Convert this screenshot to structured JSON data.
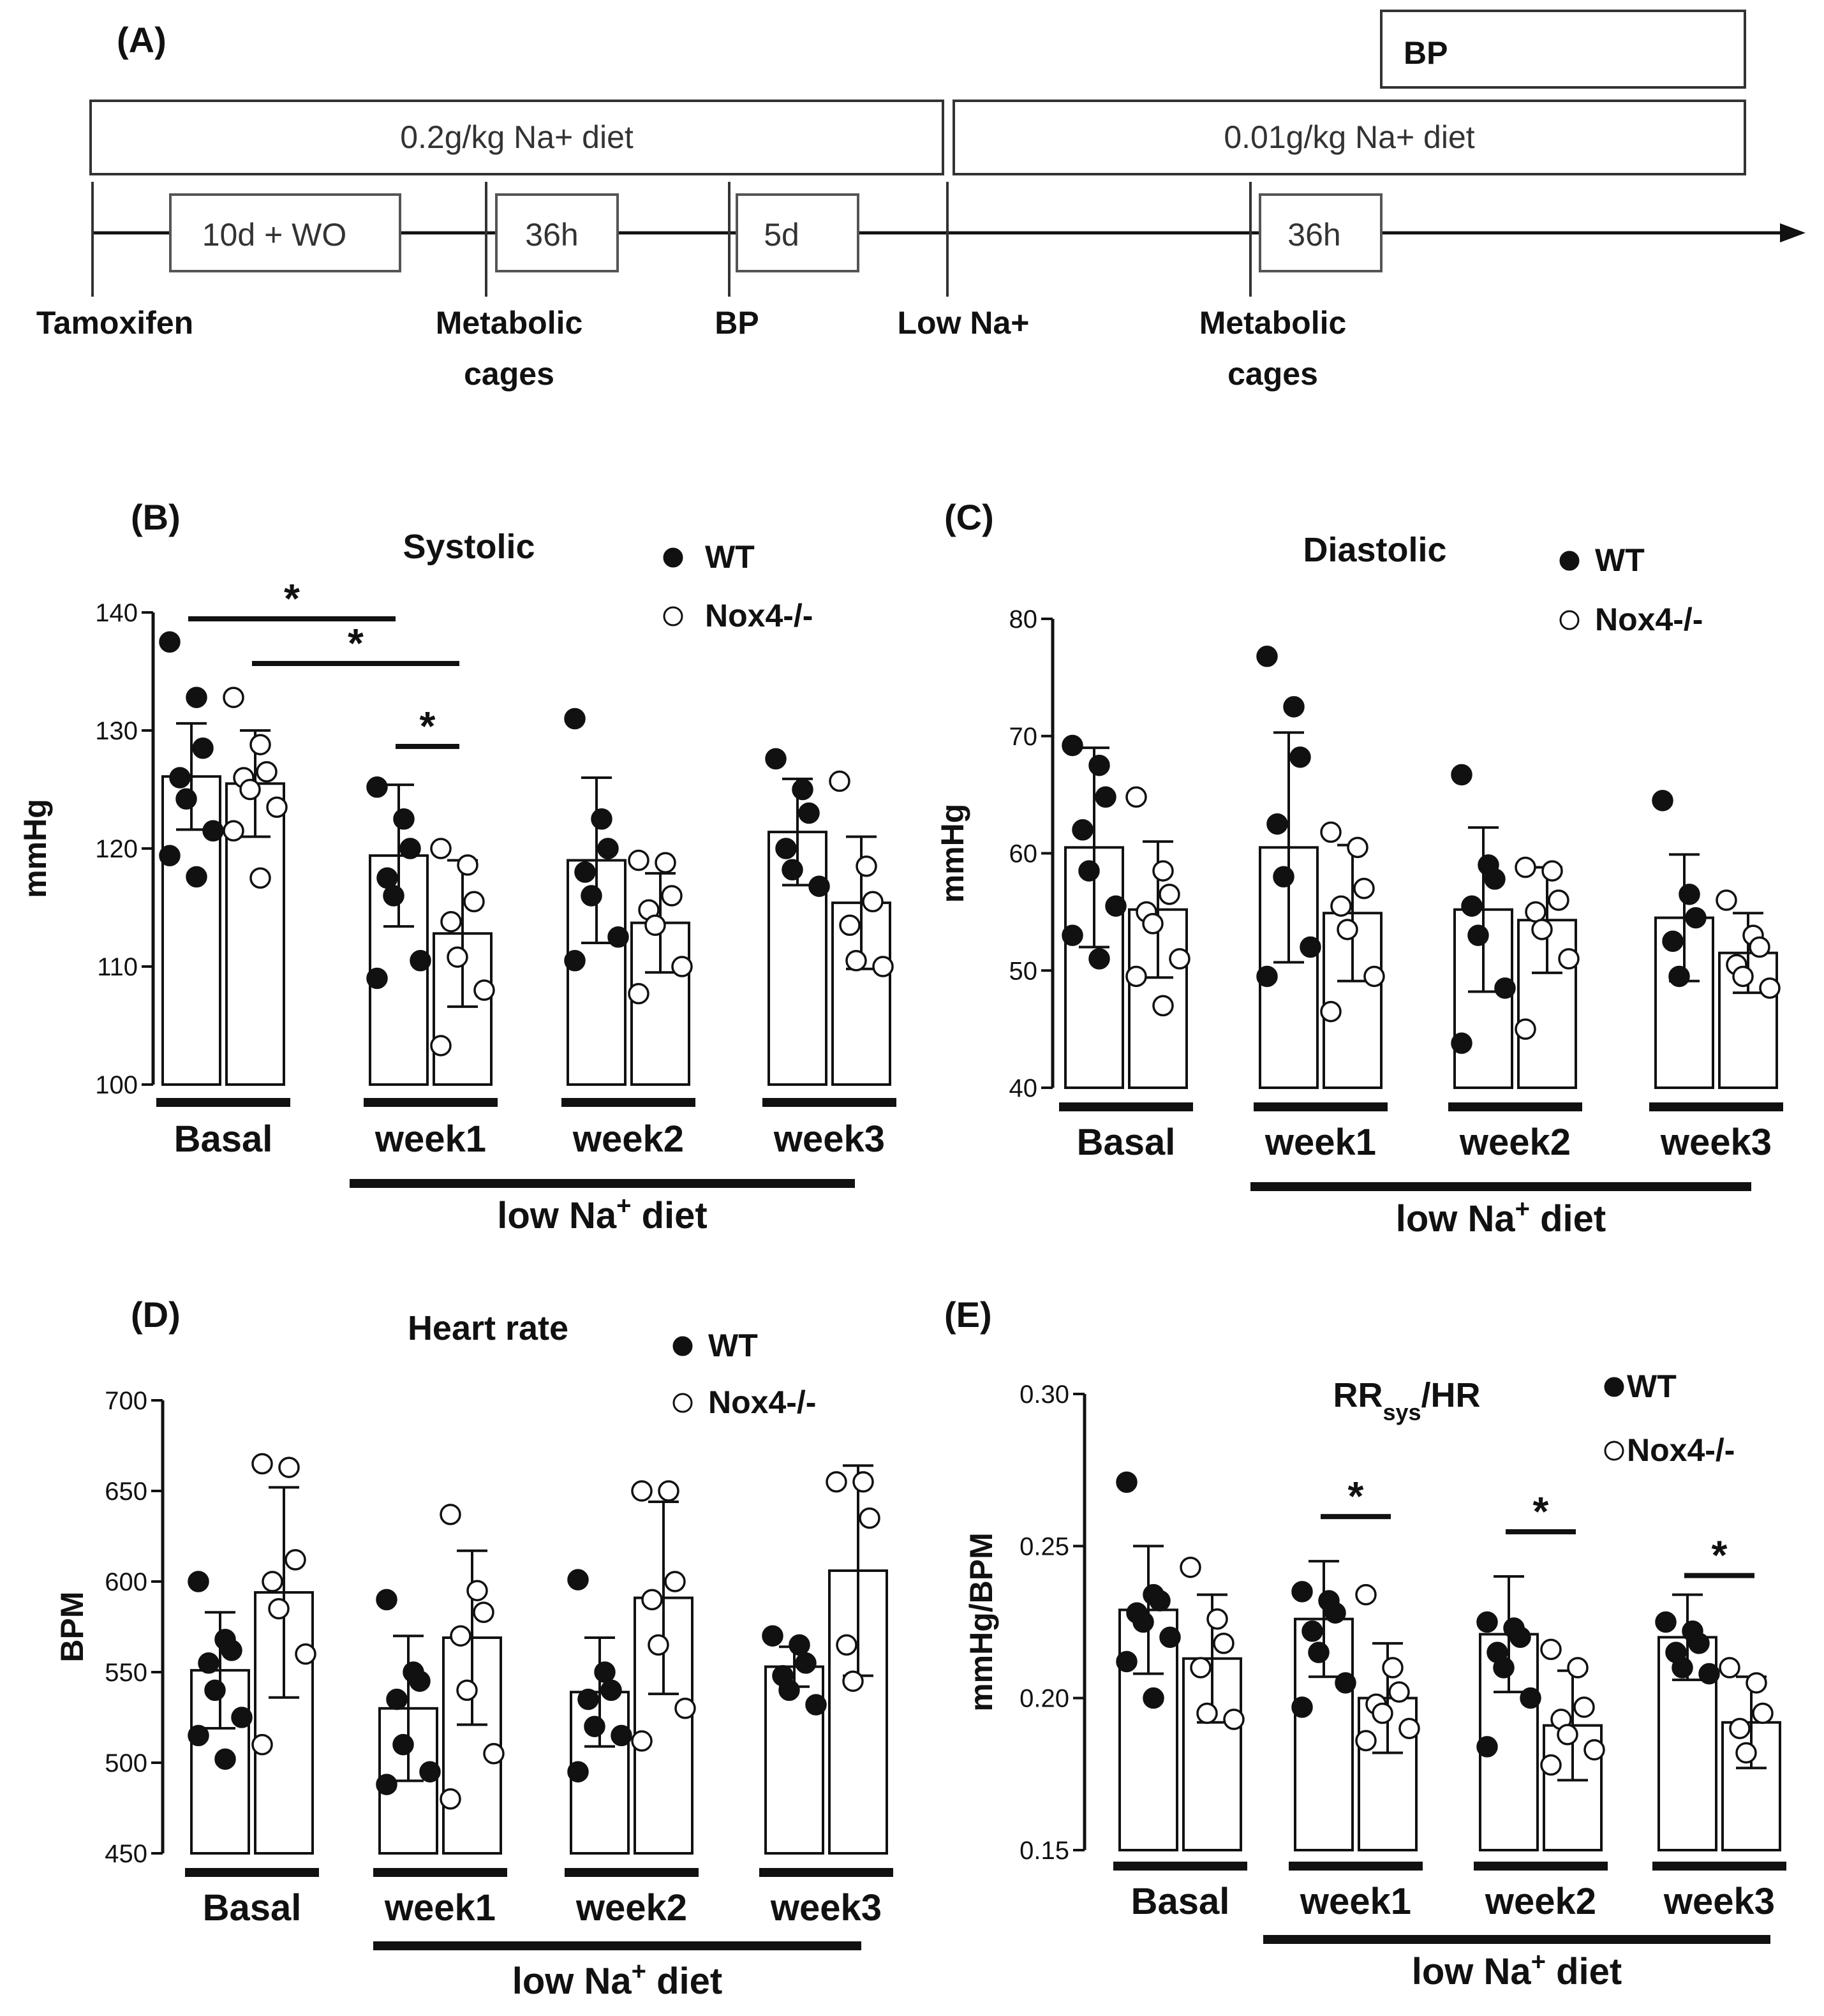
{
  "timeline": {
    "panel_label": "(A)",
    "bp_box": "BP",
    "diet_high": "0.2g/kg Na+ diet",
    "diet_low": "0.01g/kg Na+ diet",
    "interval_1": "10d + WO",
    "interval_2": "36h",
    "interval_3": "5d",
    "interval_4": "36h",
    "event_tamoxifen": "Tamoxifen",
    "event_metabolic_1_line1": "Metabolic",
    "event_metabolic_1_line2": "cages",
    "event_bp": "BP",
    "event_low_na": "Low Na+",
    "event_metabolic_2_line1": "Metabolic",
    "event_metabolic_2_line2": "cages"
  },
  "chart_data": [
    {
      "panel": "(B)",
      "type": "bar",
      "title": "Systolic",
      "title_sub": "",
      "title_tail": "",
      "ylabel": "mmHg",
      "ylim": [
        100,
        140
      ],
      "yticks": [
        "100",
        "110",
        "120",
        "130",
        "140"
      ],
      "tick_values": [
        100,
        110,
        120,
        130,
        140
      ],
      "categories": [
        "Basal",
        "week1",
        "week2",
        "week3"
      ],
      "diet_label": "low Na",
      "diet_sup": "+",
      "diet_tail": " diet",
      "legend": [
        "WT",
        "Nox4-/-"
      ],
      "series": [
        {
          "name": "WT",
          "means": [
            126.1,
            119.4,
            119.0,
            121.4
          ],
          "sd": [
            4.5,
            6.0,
            7.0,
            4.5
          ],
          "points": [
            [
              137.5,
              132.8,
              128.5,
              126.0,
              124.2,
              121.5,
              119.4,
              117.6
            ],
            [
              125.2,
              122.5,
              120.0,
              117.5,
              116.0,
              110.5,
              109.0
            ],
            [
              131.0,
              122.5,
              120.0,
              118.0,
              116.0,
              112.5,
              110.5
            ],
            [
              127.6,
              125.0,
              123.0,
              120.0,
              118.2,
              116.8
            ]
          ]
        },
        {
          "name": "Nox4-/-",
          "means": [
            125.5,
            112.8,
            113.7,
            115.4
          ],
          "sd": [
            4.5,
            6.2,
            4.2,
            5.6
          ],
          "points": [
            [
              132.8,
              128.8,
              126.5,
              126.0,
              125.0,
              123.5,
              121.5,
              117.5
            ],
            [
              120.0,
              118.6,
              115.5,
              113.8,
              110.8,
              108.0,
              103.3
            ],
            [
              119.0,
              118.8,
              116.0,
              114.8,
              113.5,
              110.0,
              107.7
            ],
            [
              125.7,
              118.5,
              115.5,
              113.5,
              110.5,
              110.0
            ]
          ]
        }
      ],
      "significance": [
        {
          "from": [
            0,
            0
          ],
          "to": [
            1,
            0
          ],
          "label": "*"
        },
        {
          "from": [
            0,
            1
          ],
          "to": [
            1,
            1
          ],
          "label": "*"
        },
        {
          "from": [
            1,
            0
          ],
          "to": [
            1,
            1
          ],
          "label": "*"
        }
      ]
    },
    {
      "panel": "(C)",
      "type": "bar",
      "title": "Diastolic",
      "title_sub": "",
      "title_tail": "",
      "ylabel": "mmHg",
      "ylim": [
        40,
        80
      ],
      "yticks": [
        "40",
        "50",
        "60",
        "70",
        "80"
      ],
      "tick_values": [
        40,
        50,
        60,
        70,
        80
      ],
      "categories": [
        "Basal",
        "week1",
        "week2",
        "week3"
      ],
      "diet_label": "low Na",
      "diet_sup": "+",
      "diet_tail": " diet",
      "legend": [
        "WT",
        "Nox4-/-"
      ],
      "series": [
        {
          "name": "WT",
          "means": [
            60.5,
            60.5,
            55.2,
            54.5
          ],
          "sd": [
            8.5,
            9.8,
            7.0,
            5.4
          ],
          "points": [
            [
              69.2,
              67.5,
              64.8,
              62.0,
              58.5,
              55.5,
              53.0,
              51.0
            ],
            [
              76.8,
              72.5,
              68.2,
              62.5,
              58.0,
              52.0,
              49.5
            ],
            [
              66.7,
              59.0,
              57.8,
              55.5,
              53.0,
              48.5,
              43.8
            ],
            [
              64.5,
              56.5,
              54.5,
              52.5,
              49.5
            ]
          ]
        },
        {
          "name": "Nox4-/-",
          "means": [
            55.2,
            54.9,
            54.3,
            51.5
          ],
          "sd": [
            5.8,
            5.8,
            4.5,
            3.4
          ],
          "points": [
            [
              64.8,
              58.5,
              56.5,
              55.0,
              54.0,
              51.0,
              49.5,
              47.0
            ],
            [
              61.8,
              60.5,
              57.0,
              55.5,
              53.5,
              49.5,
              46.5
            ],
            [
              58.8,
              58.5,
              56.0,
              55.0,
              53.5,
              51.0,
              45.0
            ],
            [
              56.0,
              53.0,
              52.0,
              50.5,
              49.5,
              48.5
            ]
          ]
        }
      ],
      "significance": []
    },
    {
      "panel": "(D)",
      "type": "bar",
      "title": "Heart rate",
      "title_sub": "",
      "title_tail": "",
      "ylabel": "BPM",
      "ylim": [
        450,
        700
      ],
      "yticks": [
        "450",
        "500",
        "550",
        "600",
        "650",
        "700"
      ],
      "tick_values": [
        450,
        500,
        550,
        600,
        650,
        700
      ],
      "categories": [
        "Basal",
        "week1",
        "week2",
        "week3"
      ],
      "diet_label": "low Na",
      "diet_sup": "+",
      "diet_tail": " diet",
      "legend": [
        "WT",
        "Nox4-/-"
      ],
      "series": [
        {
          "name": "WT",
          "means": [
            551,
            530,
            539,
            553
          ],
          "sd": [
            32,
            40,
            30,
            11
          ],
          "points": [
            [
              600,
              568,
              562,
              555,
              540,
              525,
              515,
              502
            ],
            [
              590,
              550,
              545,
              535,
              510,
              495,
              488
            ],
            [
              601,
              550,
              540,
              535,
              520,
              515,
              495
            ],
            [
              570,
              565,
              555,
              548,
              540,
              532
            ]
          ]
        },
        {
          "name": "Nox4-/-",
          "means": [
            594,
            569,
            591,
            606
          ],
          "sd": [
            58,
            48,
            53,
            58
          ],
          "points": [
            [
              665,
              663,
              612,
              600,
              585,
              560,
              510
            ],
            [
              637,
              595,
              583,
              570,
              540,
              505,
              480
            ],
            [
              650,
              650,
              600,
              590,
              565,
              530,
              512
            ],
            [
              655,
              655,
              635,
              565,
              545
            ]
          ]
        }
      ],
      "significance": []
    },
    {
      "panel": "(E)",
      "type": "bar",
      "title": "RR",
      "title_sub": "sys",
      "title_tail": "/HR",
      "ylabel": "mmHg/BPM",
      "ylim": [
        0.15,
        0.3
      ],
      "yticks": [
        "0.15",
        "0.20",
        "0.25",
        "0.30"
      ],
      "tick_values": [
        0.15,
        0.2,
        0.25,
        0.3
      ],
      "categories": [
        "Basal",
        "week1",
        "week2",
        "week3"
      ],
      "diet_label": "low Na",
      "diet_sup": "+",
      "diet_tail": " diet",
      "legend": [
        "WT",
        "Nox4-/-"
      ],
      "series": [
        {
          "name": "WT",
          "means": [
            0.229,
            0.226,
            0.221,
            0.22
          ],
          "sd": [
            0.021,
            0.019,
            0.019,
            0.014
          ],
          "points": [
            [
              0.271,
              0.234,
              0.232,
              0.228,
              0.225,
              0.22,
              0.212,
              0.2
            ],
            [
              0.235,
              0.232,
              0.228,
              0.222,
              0.215,
              0.205,
              0.197
            ],
            [
              0.225,
              0.223,
              0.22,
              0.215,
              0.21,
              0.2,
              0.184
            ],
            [
              0.225,
              0.222,
              0.218,
              0.215,
              0.21,
              0.208
            ]
          ]
        },
        {
          "name": "Nox4-/-",
          "means": [
            0.213,
            0.2,
            0.191,
            0.192
          ],
          "sd": [
            0.021,
            0.018,
            0.018,
            0.015
          ],
          "points": [
            [
              0.243,
              0.226,
              0.218,
              0.21,
              0.195,
              0.193
            ],
            [
              0.234,
              0.21,
              0.202,
              0.198,
              0.195,
              0.19,
              0.186
            ],
            [
              0.216,
              0.21,
              0.197,
              0.193,
              0.188,
              0.183,
              0.178
            ],
            [
              0.21,
              0.205,
              0.195,
              0.19,
              0.182
            ]
          ]
        }
      ],
      "significance": [
        {
          "within": 1,
          "label": "*"
        },
        {
          "within": 2,
          "label": "*"
        },
        {
          "within": 3,
          "label": "*"
        }
      ]
    }
  ]
}
